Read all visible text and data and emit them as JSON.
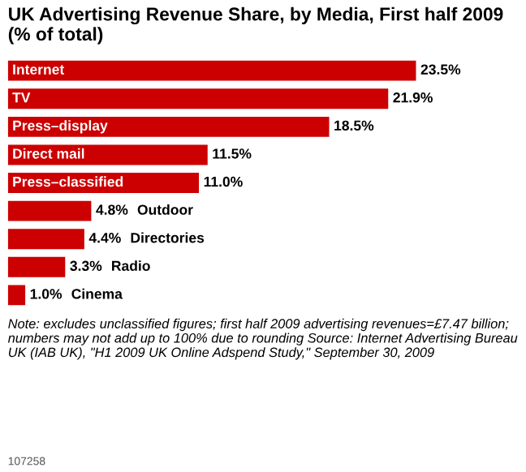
{
  "chart_data": {
    "type": "bar",
    "orientation": "horizontal",
    "title": "UK Advertising Revenue Share, by Media, First half 2009 (% of total)",
    "categories": [
      "Internet",
      "TV",
      "Press–display",
      "Direct mail",
      "Press–classified",
      "Outdoor",
      "Directories",
      "Radio",
      "Cinema"
    ],
    "values": [
      23.5,
      21.9,
      18.5,
      11.5,
      11.0,
      4.8,
      4.4,
      3.3,
      1.0
    ],
    "value_labels": [
      "23.5%",
      "21.9%",
      "18.5%",
      "11.5%",
      "11.0%",
      "4.8%",
      "4.4%",
      "3.3%",
      "1.0%"
    ],
    "color": "#cc0000",
    "annotations": [
      "Note: excludes unclassified figures; first half 2009 advertising revenues=£7.47 billion; numbers may not add up to 100% due to rounding",
      "Source: Internet Advertising Bureau UK (IAB UK), \"H1 2009 UK Online Adspend Study,\" September 30, 2009",
      "107258"
    ],
    "legend": false
  }
}
